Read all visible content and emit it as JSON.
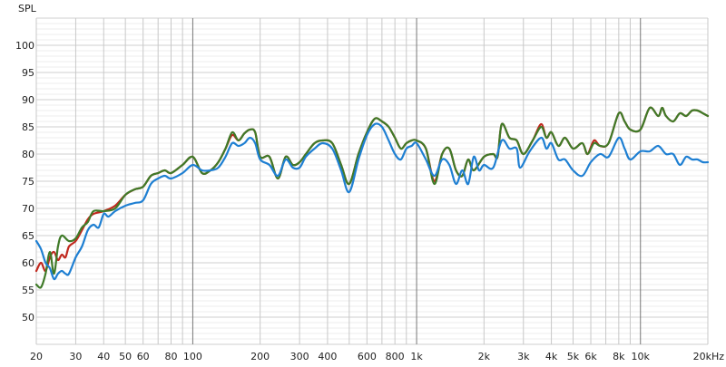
{
  "chart_data": {
    "type": "line",
    "ylabel": "SPL",
    "xlabel": "",
    "x_scale": "log",
    "xlim": [
      20,
      20000
    ],
    "ylim": [
      45,
      105
    ],
    "grid": true,
    "y_ticks": [
      50,
      55,
      60,
      65,
      70,
      75,
      80,
      85,
      90,
      95,
      100
    ],
    "y_tick_labels": [
      "50",
      "55",
      "60",
      "65",
      "70",
      "75",
      "80",
      "85",
      "90",
      "95",
      "100"
    ],
    "x_ticks": [
      20,
      30,
      40,
      50,
      60,
      80,
      100,
      200,
      300,
      400,
      600,
      800,
      1000,
      2000,
      3000,
      4000,
      5000,
      6000,
      8000,
      10000,
      20000
    ],
    "x_tick_labels": [
      "20",
      "30",
      "40",
      "50",
      "60",
      "80",
      "100",
      "200",
      "300",
      "400",
      "600",
      "800",
      "1k",
      "2k",
      "3k",
      "4k",
      "5k",
      "6k",
      "8k",
      "10k",
      "20kHz"
    ],
    "colors": {
      "red": "#c0281e",
      "green": "#3f7a28",
      "blue": "#1e7fd2"
    },
    "series": [
      {
        "color": "#c0281e",
        "points": [
          [
            20,
            58.5
          ],
          [
            21,
            60
          ],
          [
            22,
            58.5
          ],
          [
            23,
            61
          ],
          [
            24,
            62
          ],
          [
            25,
            60.5
          ],
          [
            26,
            61.5
          ],
          [
            27,
            61
          ],
          [
            28,
            63
          ],
          [
            30,
            64
          ],
          [
            32,
            66
          ],
          [
            34,
            68
          ],
          [
            36,
            69
          ],
          [
            40,
            69.5
          ],
          [
            45,
            70.5
          ],
          [
            50,
            72.5
          ],
          [
            55,
            73.5
          ],
          [
            60,
            74
          ],
          [
            65,
            76
          ],
          [
            70,
            76.5
          ],
          [
            75,
            77
          ],
          [
            80,
            76.5
          ],
          [
            90,
            78
          ],
          [
            100,
            79.5
          ],
          [
            110,
            76.5
          ],
          [
            120,
            77
          ],
          [
            130,
            78.5
          ],
          [
            140,
            81
          ],
          [
            150,
            83.5
          ],
          [
            160,
            82.5
          ],
          [
            170,
            83.8
          ],
          [
            180,
            84.5
          ],
          [
            190,
            84
          ],
          [
            200,
            79.5
          ],
          [
            220,
            79.5
          ],
          [
            240,
            75.5
          ],
          [
            260,
            79.5
          ],
          [
            280,
            78
          ],
          [
            300,
            78.5
          ],
          [
            320,
            80
          ],
          [
            350,
            82
          ],
          [
            380,
            82.5
          ],
          [
            420,
            82
          ],
          [
            460,
            78
          ],
          [
            500,
            74.5
          ],
          [
            550,
            80
          ],
          [
            600,
            84
          ],
          [
            650,
            86.5
          ],
          [
            700,
            86
          ],
          [
            750,
            85
          ],
          [
            800,
            83
          ],
          [
            850,
            81
          ],
          [
            900,
            82
          ],
          [
            950,
            82.5
          ],
          [
            1000,
            82.5
          ],
          [
            1100,
            81
          ],
          [
            1200,
            75
          ],
          [
            1300,
            80
          ],
          [
            1400,
            81
          ],
          [
            1500,
            77
          ],
          [
            1600,
            76
          ],
          [
            1700,
            79
          ],
          [
            1800,
            77
          ],
          [
            2000,
            79.5
          ],
          [
            2200,
            80
          ],
          [
            2300,
            79.5
          ],
          [
            2400,
            85.5
          ],
          [
            2600,
            83
          ],
          [
            2800,
            82.5
          ],
          [
            3000,
            80
          ],
          [
            3300,
            82.5
          ],
          [
            3600,
            85.5
          ],
          [
            3800,
            83
          ],
          [
            4000,
            84
          ],
          [
            4300,
            81.5
          ],
          [
            4600,
            83
          ],
          [
            5000,
            81
          ],
          [
            5500,
            82
          ],
          [
            5800,
            80
          ],
          [
            6200,
            82.5
          ],
          [
            6600,
            81.5
          ],
          [
            7200,
            82
          ],
          [
            8000,
            87.5
          ],
          [
            8500,
            86
          ],
          [
            9000,
            84.5
          ],
          [
            10000,
            84.5
          ],
          [
            11000,
            88.5
          ],
          [
            12000,
            87
          ],
          [
            12500,
            88.5
          ],
          [
            13000,
            87
          ],
          [
            14000,
            86
          ],
          [
            15000,
            87.5
          ],
          [
            16000,
            87
          ],
          [
            17000,
            88
          ],
          [
            18000,
            88
          ],
          [
            19000,
            87.5
          ],
          [
            20000,
            87
          ]
        ]
      },
      {
        "color": "#3f7a28",
        "points": [
          [
            20,
            56
          ],
          [
            21,
            55.5
          ],
          [
            22,
            58
          ],
          [
            23,
            62
          ],
          [
            24,
            58
          ],
          [
            25,
            63
          ],
          [
            26,
            65
          ],
          [
            28,
            64
          ],
          [
            30,
            64.5
          ],
          [
            32,
            66.5
          ],
          [
            34,
            67.5
          ],
          [
            36,
            69.5
          ],
          [
            40,
            69.5
          ],
          [
            45,
            70
          ],
          [
            50,
            72.5
          ],
          [
            55,
            73.5
          ],
          [
            60,
            74
          ],
          [
            65,
            76
          ],
          [
            70,
            76.5
          ],
          [
            75,
            77
          ],
          [
            80,
            76.5
          ],
          [
            90,
            78
          ],
          [
            100,
            79.5
          ],
          [
            110,
            76.5
          ],
          [
            120,
            77
          ],
          [
            130,
            78.5
          ],
          [
            140,
            81
          ],
          [
            150,
            84
          ],
          [
            160,
            82.5
          ],
          [
            170,
            83.8
          ],
          [
            180,
            84.5
          ],
          [
            190,
            84
          ],
          [
            200,
            79.5
          ],
          [
            220,
            79.5
          ],
          [
            240,
            75.5
          ],
          [
            260,
            79.5
          ],
          [
            280,
            78
          ],
          [
            300,
            78.5
          ],
          [
            320,
            80
          ],
          [
            350,
            82
          ],
          [
            380,
            82.5
          ],
          [
            420,
            82
          ],
          [
            460,
            78
          ],
          [
            500,
            74.5
          ],
          [
            550,
            80
          ],
          [
            600,
            84
          ],
          [
            650,
            86.5
          ],
          [
            700,
            86
          ],
          [
            750,
            85
          ],
          [
            800,
            83
          ],
          [
            850,
            81
          ],
          [
            900,
            82
          ],
          [
            950,
            82.5
          ],
          [
            1000,
            82.5
          ],
          [
            1100,
            81
          ],
          [
            1200,
            74.5
          ],
          [
            1300,
            80
          ],
          [
            1400,
            81
          ],
          [
            1500,
            77
          ],
          [
            1600,
            76
          ],
          [
            1700,
            79
          ],
          [
            1800,
            77
          ],
          [
            2000,
            79.5
          ],
          [
            2200,
            80
          ],
          [
            2300,
            79.5
          ],
          [
            2400,
            85.5
          ],
          [
            2600,
            83
          ],
          [
            2800,
            82.5
          ],
          [
            3000,
            80
          ],
          [
            3300,
            82.5
          ],
          [
            3600,
            85
          ],
          [
            3800,
            83
          ],
          [
            4000,
            84
          ],
          [
            4300,
            81.5
          ],
          [
            4600,
            83
          ],
          [
            5000,
            81
          ],
          [
            5500,
            82
          ],
          [
            5800,
            80
          ],
          [
            6200,
            82
          ],
          [
            6600,
            81.5
          ],
          [
            7200,
            82
          ],
          [
            8000,
            87.5
          ],
          [
            8500,
            86
          ],
          [
            9000,
            84.5
          ],
          [
            10000,
            84.5
          ],
          [
            11000,
            88.5
          ],
          [
            12000,
            87
          ],
          [
            12500,
            88.5
          ],
          [
            13000,
            87
          ],
          [
            14000,
            86
          ],
          [
            15000,
            87.5
          ],
          [
            16000,
            87
          ],
          [
            17000,
            88
          ],
          [
            18000,
            88
          ],
          [
            19000,
            87.5
          ],
          [
            20000,
            87
          ]
        ]
      },
      {
        "color": "#1e7fd2",
        "points": [
          [
            20,
            64
          ],
          [
            21,
            62.5
          ],
          [
            22,
            60
          ],
          [
            23,
            59
          ],
          [
            24,
            57
          ],
          [
            25,
            58
          ],
          [
            26,
            58.5
          ],
          [
            27,
            58
          ],
          [
            28,
            58
          ],
          [
            30,
            61
          ],
          [
            32,
            63
          ],
          [
            34,
            66
          ],
          [
            36,
            67
          ],
          [
            38,
            66.5
          ],
          [
            40,
            69
          ],
          [
            42,
            68.5
          ],
          [
            45,
            69.5
          ],
          [
            50,
            70.5
          ],
          [
            55,
            71
          ],
          [
            60,
            71.5
          ],
          [
            65,
            74.5
          ],
          [
            70,
            75.5
          ],
          [
            75,
            76
          ],
          [
            80,
            75.5
          ],
          [
            90,
            76.5
          ],
          [
            100,
            78
          ],
          [
            110,
            77
          ],
          [
            120,
            77
          ],
          [
            130,
            77.5
          ],
          [
            140,
            79.5
          ],
          [
            150,
            82
          ],
          [
            160,
            81.5
          ],
          [
            170,
            82
          ],
          [
            180,
            83
          ],
          [
            190,
            82
          ],
          [
            200,
            79
          ],
          [
            220,
            78
          ],
          [
            240,
            76
          ],
          [
            260,
            79
          ],
          [
            280,
            77.5
          ],
          [
            300,
            77.5
          ],
          [
            320,
            79.5
          ],
          [
            350,
            81
          ],
          [
            380,
            82
          ],
          [
            420,
            81
          ],
          [
            460,
            77
          ],
          [
            500,
            73
          ],
          [
            550,
            79
          ],
          [
            600,
            83.5
          ],
          [
            650,
            85.5
          ],
          [
            700,
            85
          ],
          [
            750,
            82.5
          ],
          [
            800,
            80
          ],
          [
            850,
            79
          ],
          [
            900,
            81
          ],
          [
            950,
            81.5
          ],
          [
            1000,
            82
          ],
          [
            1100,
            79
          ],
          [
            1200,
            76
          ],
          [
            1300,
            79
          ],
          [
            1400,
            78
          ],
          [
            1500,
            74.5
          ],
          [
            1600,
            77
          ],
          [
            1700,
            74.5
          ],
          [
            1800,
            79.5
          ],
          [
            1900,
            77
          ],
          [
            2000,
            78
          ],
          [
            2200,
            77.5
          ],
          [
            2400,
            82.5
          ],
          [
            2600,
            81
          ],
          [
            2800,
            81
          ],
          [
            2900,
            77.5
          ],
          [
            3200,
            80.5
          ],
          [
            3600,
            83
          ],
          [
            3800,
            81
          ],
          [
            4000,
            82
          ],
          [
            4300,
            79
          ],
          [
            4600,
            79
          ],
          [
            5000,
            77
          ],
          [
            5500,
            76
          ],
          [
            6000,
            78.5
          ],
          [
            6600,
            80
          ],
          [
            7200,
            79.5
          ],
          [
            8000,
            83
          ],
          [
            8500,
            81
          ],
          [
            9000,
            79
          ],
          [
            10000,
            80.5
          ],
          [
            11000,
            80.5
          ],
          [
            12000,
            81.5
          ],
          [
            13000,
            80
          ],
          [
            14000,
            80
          ],
          [
            15000,
            78
          ],
          [
            16000,
            79.5
          ],
          [
            17000,
            79
          ],
          [
            18000,
            79
          ],
          [
            19000,
            78.5
          ],
          [
            20000,
            78.5
          ]
        ]
      }
    ]
  }
}
